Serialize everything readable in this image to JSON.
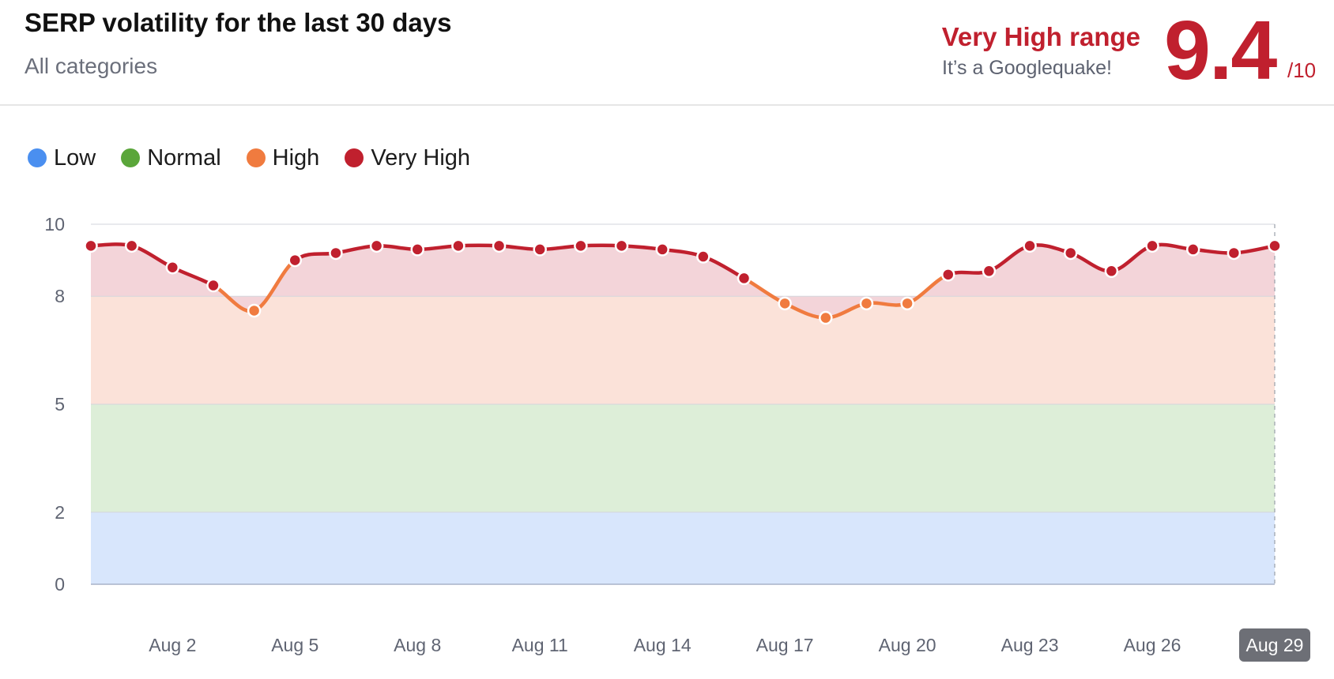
{
  "header": {
    "title": "SERP volatility for the last 30 days",
    "subtitle": "All categories",
    "range_label": "Very High range",
    "range_note": "It’s a Googlequake!",
    "score": "9.4",
    "score_max": "/10"
  },
  "colors": {
    "low": "#4a8ff0",
    "normal": "#5aa63a",
    "high": "#f07b3f",
    "very_high": "#c0202e",
    "band_low": "#d8e6fc",
    "band_normal": "#ddeed8",
    "band_high": "#fbe2d9",
    "band_very_high": "#f3d4d9",
    "accent": "#c0202e",
    "current_tick_bg": "#6d6f76"
  },
  "legend": [
    {
      "label": "Low",
      "color_key": "low"
    },
    {
      "label": "Normal",
      "color_key": "normal"
    },
    {
      "label": "High",
      "color_key": "high"
    },
    {
      "label": "Very High",
      "color_key": "very_high"
    }
  ],
  "chart_data": {
    "type": "line",
    "title": "SERP volatility for the last 30 days",
    "subtitle": "All categories",
    "xlabel": "",
    "ylabel": "",
    "ylim": [
      0,
      10
    ],
    "yticks": [
      0,
      2,
      5,
      8,
      10
    ],
    "bands": [
      {
        "name": "Low",
        "range": [
          0,
          2
        ]
      },
      {
        "name": "Normal",
        "range": [
          2,
          5
        ]
      },
      {
        "name": "High",
        "range": [
          5,
          8
        ]
      },
      {
        "name": "Very High",
        "range": [
          8,
          10
        ]
      }
    ],
    "x": [
      "Jul 31",
      "Aug 1",
      "Aug 2",
      "Aug 3",
      "Aug 4",
      "Aug 5",
      "Aug 6",
      "Aug 7",
      "Aug 8",
      "Aug 9",
      "Aug 10",
      "Aug 11",
      "Aug 12",
      "Aug 13",
      "Aug 14",
      "Aug 15",
      "Aug 16",
      "Aug 17",
      "Aug 18",
      "Aug 19",
      "Aug 20",
      "Aug 21",
      "Aug 22",
      "Aug 23",
      "Aug 24",
      "Aug 25",
      "Aug 26",
      "Aug 27",
      "Aug 28",
      "Aug 29"
    ],
    "xtick_labels": [
      "Aug 2",
      "Aug 5",
      "Aug 8",
      "Aug 11",
      "Aug 14",
      "Aug 17",
      "Aug 20",
      "Aug 23",
      "Aug 26",
      "Aug 29"
    ],
    "current_label": "Aug 29",
    "series": [
      {
        "values": [
          9.4,
          9.4,
          8.8,
          8.3,
          7.6,
          9.0,
          9.2,
          9.4,
          9.3,
          9.4,
          9.4,
          9.3,
          9.4,
          9.4,
          9.3,
          9.1,
          8.5,
          7.8,
          7.4,
          7.8,
          7.8,
          8.6,
          8.7,
          9.4,
          9.2,
          8.7,
          9.4,
          9.3,
          9.2,
          9.4
        ]
      }
    ],
    "grid": true,
    "legend_position": "top-left"
  }
}
